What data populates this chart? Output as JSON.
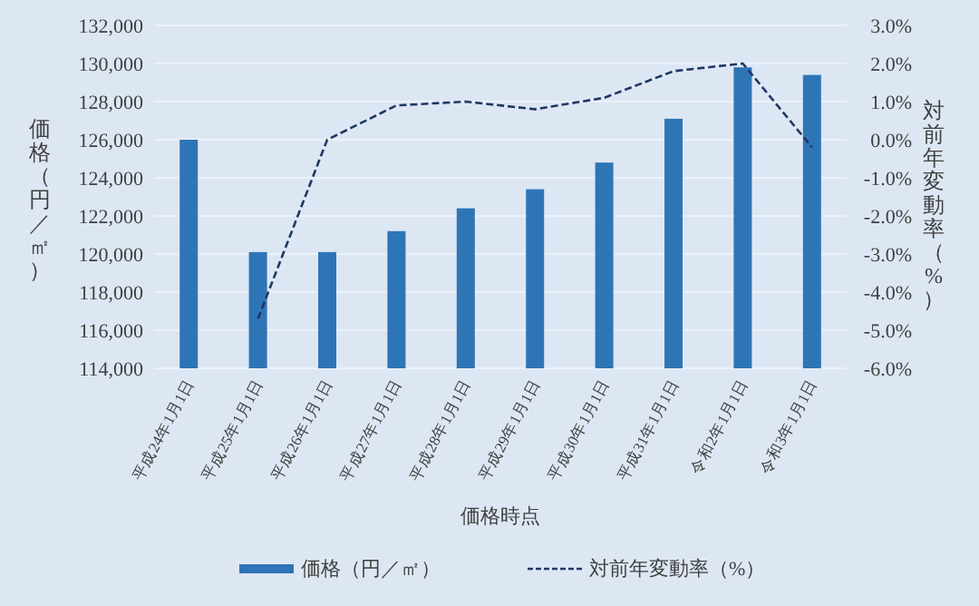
{
  "chart_data": {
    "type": "bar",
    "xlabel": "価格時点",
    "ylabel": "価格（円／㎡）",
    "y2label": "対前年変動率（%）",
    "categories": [
      "平成24年1月1日",
      "平成25年1月1日",
      "平成26年1月1日",
      "平成27年1月1日",
      "平成28年1月1日",
      "平成29年1月1日",
      "平成30年1月1日",
      "平成31年1月1日",
      "令和2年1月1日",
      "令和3年1月1日"
    ],
    "series": [
      {
        "name": "価格（円／㎡）",
        "color": "#2e75b6",
        "values": [
          126000,
          120100,
          120100,
          121200,
          122400,
          123400,
          124800,
          127100,
          129800,
          129400
        ]
      },
      {
        "name": "対前年変動率（%）",
        "type": "line",
        "axis": "y2",
        "color": "#1f3864",
        "line_style": "dashed",
        "values": [
          null,
          -4.7,
          0.0,
          0.9,
          1.0,
          0.8,
          1.1,
          1.8,
          2.0,
          -0.2
        ]
      }
    ],
    "ylim": [
      114000,
      132000
    ],
    "yticks": [
      {
        "value": 114000,
        "label": "114,000"
      },
      {
        "value": 116000,
        "label": "116,000"
      },
      {
        "value": 118000,
        "label": "118,000"
      },
      {
        "value": 120000,
        "label": "120,000"
      },
      {
        "value": 122000,
        "label": "122,000"
      },
      {
        "value": 124000,
        "label": "124,000"
      },
      {
        "value": 126000,
        "label": "126,000"
      },
      {
        "value": 128000,
        "label": "128,000"
      },
      {
        "value": 130000,
        "label": "130,000"
      },
      {
        "value": 132000,
        "label": "132,000"
      }
    ],
    "y2lim": [
      -6,
      3
    ],
    "y2ticks": [
      {
        "value": -6,
        "label": "-6.0%"
      },
      {
        "value": -5,
        "label": "-5.0%"
      },
      {
        "value": -4,
        "label": "-4.0%"
      },
      {
        "value": -3,
        "label": "-3.0%"
      },
      {
        "value": -2,
        "label": "-2.0%"
      },
      {
        "value": -1,
        "label": "-1.0%"
      },
      {
        "value": 0,
        "label": "0.0%"
      },
      {
        "value": 1,
        "label": "1.0%"
      },
      {
        "value": 2,
        "label": "2.0%"
      },
      {
        "value": 3,
        "label": "3.0%"
      }
    ],
    "grid": "y",
    "legend": "bottom"
  }
}
